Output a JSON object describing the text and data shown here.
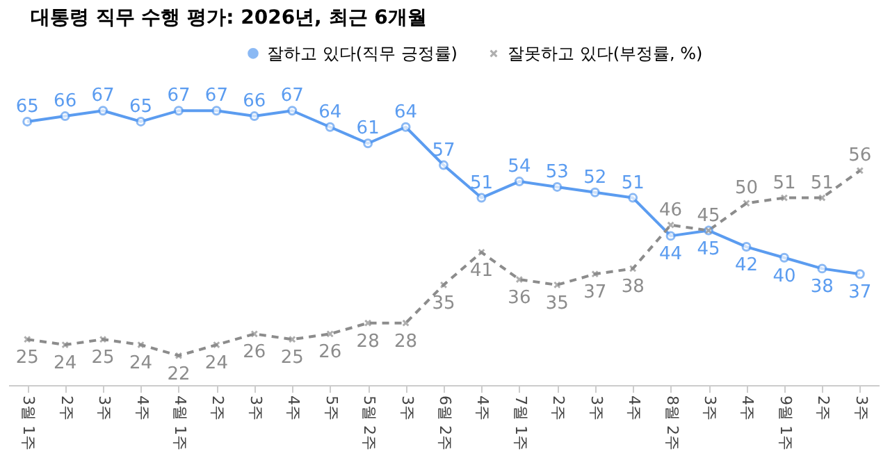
{
  "chart_data": {
    "type": "line",
    "title": "대통령 직무 수행 평가: 2026년, 최근 6개월",
    "categories": [
      "3월 1주",
      "2주",
      "3주",
      "4주",
      "4월 1주",
      "2주",
      "3주",
      "4주",
      "5주",
      "5월 2주",
      "3주",
      "6월 2주",
      "4주",
      "7월 1주",
      "2주",
      "3주",
      "4주",
      "8월 2주",
      "3주",
      "4주",
      "9월 1주",
      "2주",
      "3주"
    ],
    "series": [
      {
        "name": "잘하고 있다(직무 긍정률)",
        "color": "#5b9cf0",
        "marker": "circle",
        "line_style": "solid",
        "values": [
          65,
          66,
          67,
          65,
          67,
          67,
          66,
          67,
          64,
          61,
          64,
          57,
          51,
          54,
          53,
          52,
          51,
          44,
          45,
          42,
          40,
          38,
          37
        ]
      },
      {
        "name": "잘못하고 있다(부정률, %)",
        "color": "#8c8c8c",
        "marker": "cross",
        "line_style": "dashed",
        "values": [
          25,
          24,
          25,
          24,
          22,
          24,
          26,
          25,
          26,
          28,
          28,
          35,
          41,
          36,
          35,
          37,
          38,
          46,
          45,
          50,
          51,
          51,
          56
        ]
      }
    ],
    "data_labels": true,
    "legend": "top right",
    "grid": false
  }
}
